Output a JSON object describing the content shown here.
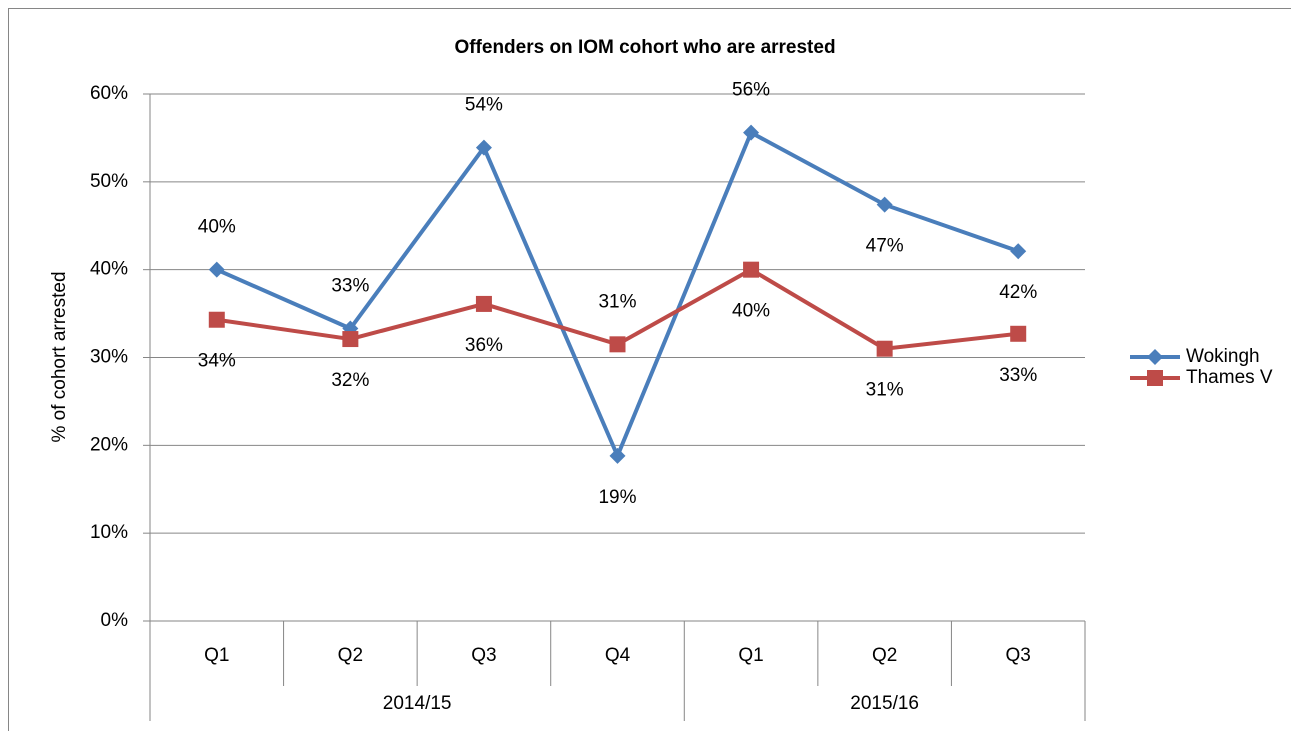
{
  "chart_data": {
    "type": "line",
    "title": "Offenders on IOM cohort who are arrested",
    "ylabel": "% of cohort arrested",
    "categories": [
      "Q1",
      "Q2",
      "Q3",
      "Q4",
      "Q1",
      "Q2",
      "Q3"
    ],
    "groups": [
      "2014/15",
      "2015/16"
    ],
    "series": [
      {
        "name": "Wokingh",
        "color": "#4a7ebb",
        "marker": "diamond",
        "values": [
          40,
          33.3,
          53.9,
          18.8,
          55.6,
          47.4,
          42.1
        ],
        "value_labels": [
          "40%",
          "33%",
          "54%",
          "19%",
          "56%",
          "47%",
          "42%"
        ]
      },
      {
        "name": "Thames V",
        "color": "#be4b48",
        "marker": "square",
        "values": [
          34.3,
          32.1,
          36.1,
          31.5,
          40,
          31,
          32.7
        ],
        "value_labels": [
          "34%",
          "32%",
          "36%",
          "31%",
          "40%",
          "31%",
          "33%"
        ]
      }
    ],
    "ylim": [
      0,
      60
    ],
    "yticks": [
      {
        "value": 0,
        "label": "0%"
      },
      {
        "value": 10,
        "label": "10%"
      },
      {
        "value": 20,
        "label": "20%"
      },
      {
        "value": 30,
        "label": "30%"
      },
      {
        "value": 40,
        "label": "40%"
      },
      {
        "value": 50,
        "label": "50%"
      },
      {
        "value": 60,
        "label": "60%"
      }
    ],
    "grid": true,
    "legend": "right"
  }
}
